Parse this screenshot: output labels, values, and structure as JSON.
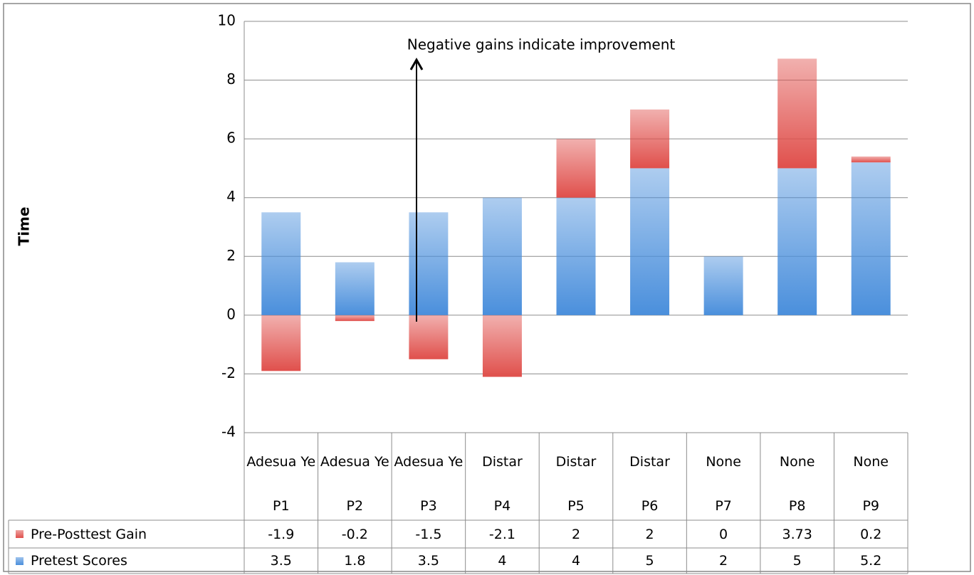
{
  "chart_data": {
    "type": "stacked_bar",
    "y_label": "Time",
    "annotation": "Negative gains indicate improvement",
    "groups": [
      "Adesua Ye",
      "Adesua Ye",
      "Adesua Ye",
      "Distar",
      "Distar",
      "Distar",
      "None",
      "None",
      "None"
    ],
    "categories": [
      "P1",
      "P2",
      "P3",
      "P4",
      "P5",
      "P6",
      "P7",
      "P8",
      "P9"
    ],
    "series": [
      {
        "name": "Pre-Posttest Gain",
        "color": "#e0504c",
        "values": [
          -1.9,
          -0.2,
          -1.5,
          -2.1,
          2,
          2,
          0,
          3.73,
          0.2
        ]
      },
      {
        "name": "Pretest Scores",
        "color": "#4a8fdc",
        "values": [
          3.5,
          1.8,
          3.5,
          4,
          4,
          5,
          2,
          5,
          5.2
        ]
      }
    ],
    "ylim": [
      -4,
      10
    ],
    "yticks": [
      -4,
      -2,
      0,
      2,
      4,
      6,
      8,
      10
    ],
    "grid": true
  }
}
